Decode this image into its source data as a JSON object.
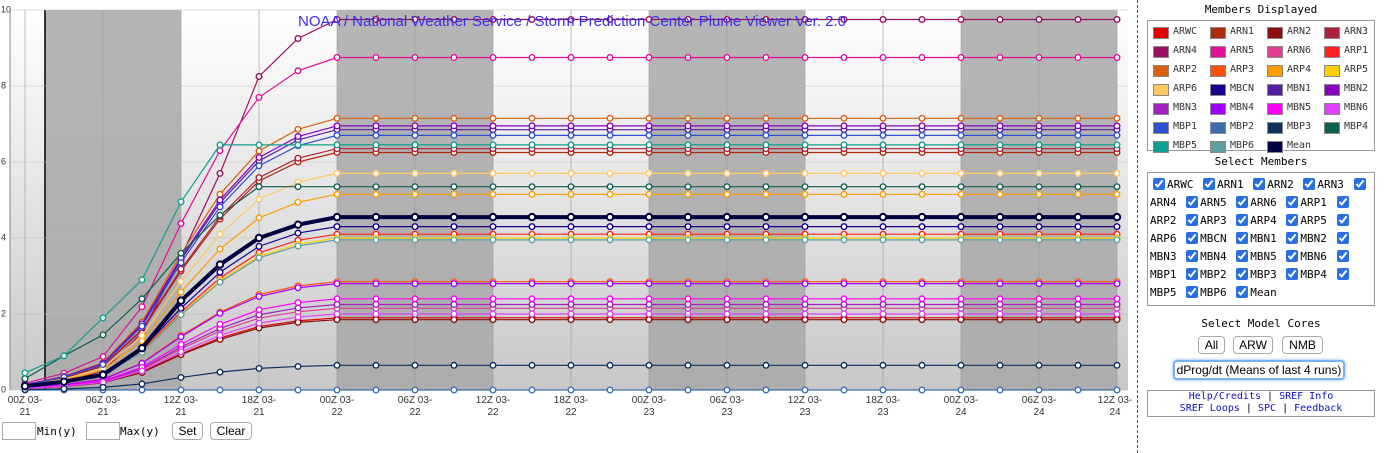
{
  "chart_data": {
    "type": "line",
    "title": "NOAA / National Weather Service / Storm Prediction Center Plume Viewer Ver. 2.0",
    "categories": [
      "00Z 03-21",
      null,
      "06Z 03-21",
      null,
      "12Z 03-21",
      null,
      "18Z 03-21",
      null,
      "00Z 03-22",
      null,
      "06Z 03-22",
      null,
      "12Z 03-22",
      null,
      "18Z 03-22",
      null,
      "00Z 03-23",
      null,
      "06Z 03-23",
      null,
      "12Z 03-23",
      null,
      "18Z 03-23",
      null,
      "00Z 03-24",
      null,
      "06Z 03-24",
      null,
      "12Z 03-24"
    ],
    "ylim": [
      0,
      10
    ],
    "yticks": [
      0,
      2,
      4,
      6,
      8,
      10
    ],
    "grid": true,
    "series": [
      {
        "name": "ARWC",
        "color": "#e00000",
        "values": [
          0.04,
          0.1,
          0.19,
          0.48,
          0.95,
          1.37,
          1.67,
          1.82,
          1.9,
          1.9,
          1.9,
          1.9,
          1.9,
          1.9,
          1.9,
          1.9,
          1.9,
          1.9,
          1.9,
          1.9,
          1.9,
          1.9,
          1.9,
          1.9,
          1.9,
          1.9,
          1.9,
          1.9,
          1.9
        ]
      },
      {
        "name": "ARN1",
        "color": "#b02a10",
        "values": [
          0.13,
          0.31,
          0.63,
          1.56,
          3.13,
          4.5,
          5.5,
          6.0,
          6.25,
          6.25,
          6.25,
          6.25,
          6.25,
          6.25,
          6.25,
          6.25,
          6.25,
          6.25,
          6.25,
          6.25,
          6.25,
          6.25,
          6.25,
          6.25,
          6.25,
          6.25,
          6.25,
          6.25,
          6.25
        ]
      },
      {
        "name": "ARN2",
        "color": "#8b1010",
        "values": [
          0.04,
          0.09,
          0.19,
          0.46,
          0.93,
          1.33,
          1.63,
          1.78,
          1.85,
          1.85,
          1.85,
          1.85,
          1.85,
          1.85,
          1.85,
          1.85,
          1.85,
          1.85,
          1.85,
          1.85,
          1.85,
          1.85,
          1.85,
          1.85,
          1.85,
          1.85,
          1.85,
          1.85,
          1.85
        ]
      },
      {
        "name": "ARN3",
        "color": "#b0203a",
        "values": [
          0.13,
          0.32,
          0.64,
          1.59,
          3.18,
          4.57,
          5.59,
          6.1,
          6.35,
          6.35,
          6.35,
          6.35,
          6.35,
          6.35,
          6.35,
          6.35,
          6.35,
          6.35,
          6.35,
          6.35,
          6.35,
          6.35,
          6.35,
          6.35,
          6.35,
          6.35,
          6.35,
          6.35,
          6.35
        ]
      },
      {
        "name": "ARN4",
        "color": "#9a1060",
        "values": [
          0.1,
          0.2,
          0.5,
          1.5,
          3.5,
          5.7,
          8.25,
          9.25,
          9.75,
          9.75,
          9.75,
          9.75,
          9.75,
          9.75,
          9.75,
          9.75,
          9.75,
          9.75,
          9.75,
          9.75,
          9.75,
          9.75,
          9.75,
          9.75,
          9.75,
          9.75,
          9.75,
          9.75,
          9.75
        ]
      },
      {
        "name": "ARN5",
        "color": "#e0109a",
        "values": [
          0.18,
          0.44,
          0.88,
          2.19,
          4.38,
          6.3,
          7.7,
          8.4,
          8.75,
          8.75,
          8.75,
          8.75,
          8.75,
          8.75,
          8.75,
          8.75,
          8.75,
          8.75,
          8.75,
          8.75,
          8.75,
          8.75,
          8.75,
          8.75,
          8.75,
          8.75,
          8.75,
          8.75,
          8.75
        ]
      },
      {
        "name": "ARN6",
        "color": "#e04090",
        "values": [
          0.04,
          0.11,
          0.22,
          0.54,
          1.08,
          1.55,
          1.89,
          2.06,
          2.15,
          2.15,
          2.15,
          2.15,
          2.15,
          2.15,
          2.15,
          2.15,
          2.15,
          2.15,
          2.15,
          2.15,
          2.15,
          2.15,
          2.15,
          2.15,
          2.15,
          2.15,
          2.15,
          2.15,
          2.15
        ]
      },
      {
        "name": "ARP1",
        "color": "#ff2020",
        "values": [
          0.08,
          0.21,
          0.41,
          1.03,
          2.05,
          2.95,
          3.61,
          3.94,
          4.1,
          4.1,
          4.1,
          4.1,
          4.1,
          4.1,
          4.1,
          4.1,
          4.1,
          4.1,
          4.1,
          4.1,
          4.1,
          4.1,
          4.1,
          4.1,
          4.1,
          4.1,
          4.1,
          4.1,
          4.1
        ]
      },
      {
        "name": "ARP2",
        "color": "#d86010",
        "values": [
          0.14,
          0.36,
          0.72,
          1.79,
          3.58,
          5.15,
          6.29,
          6.86,
          7.15,
          7.15,
          7.15,
          7.15,
          7.15,
          7.15,
          7.15,
          7.15,
          7.15,
          7.15,
          7.15,
          7.15,
          7.15,
          7.15,
          7.15,
          7.15,
          7.15,
          7.15,
          7.15,
          7.15,
          7.15
        ]
      },
      {
        "name": "ARP3",
        "color": "#ff5010",
        "values": [
          0.06,
          0.14,
          0.29,
          0.71,
          1.43,
          2.05,
          2.51,
          2.74,
          2.85,
          2.85,
          2.85,
          2.85,
          2.85,
          2.85,
          2.85,
          2.85,
          2.85,
          2.85,
          2.85,
          2.85,
          2.85,
          2.85,
          2.85,
          2.85,
          2.85,
          2.85,
          2.85,
          2.85,
          2.85
        ]
      },
      {
        "name": "ARP4",
        "color": "#ff9a00",
        "values": [
          0.1,
          0.26,
          0.52,
          1.29,
          2.58,
          3.71,
          4.53,
          4.94,
          5.15,
          5.15,
          5.15,
          5.15,
          5.15,
          5.15,
          5.15,
          5.15,
          5.15,
          5.15,
          5.15,
          5.15,
          5.15,
          5.15,
          5.15,
          5.15,
          5.15,
          5.15,
          5.15,
          5.15,
          5.15
        ]
      },
      {
        "name": "ARP5",
        "color": "#ffd000",
        "values": [
          0.08,
          0.2,
          0.4,
          1.0,
          2.0,
          2.88,
          3.52,
          3.84,
          4.0,
          4.0,
          4.0,
          4.0,
          4.0,
          4.0,
          4.0,
          4.0,
          4.0,
          4.0,
          4.0,
          4.0,
          4.0,
          4.0,
          4.0,
          4.0,
          4.0,
          4.0,
          4.0,
          4.0,
          4.0
        ]
      },
      {
        "name": "ARP6",
        "color": "#ffc860",
        "values": [
          0.11,
          0.29,
          0.57,
          1.43,
          2.85,
          4.1,
          5.02,
          5.47,
          5.7,
          5.7,
          5.7,
          5.7,
          5.7,
          5.7,
          5.7,
          5.7,
          5.7,
          5.7,
          5.7,
          5.7,
          5.7,
          5.7,
          5.7,
          5.7,
          5.7,
          5.7,
          5.7,
          5.7,
          5.7
        ]
      },
      {
        "name": "MBCN",
        "color": "#1a0090",
        "values": [
          0.09,
          0.22,
          0.43,
          1.08,
          2.15,
          3.1,
          3.78,
          4.13,
          4.3,
          4.3,
          4.3,
          4.3,
          4.3,
          4.3,
          4.3,
          4.3,
          4.3,
          4.3,
          4.3,
          4.3,
          4.3,
          4.3,
          4.3,
          4.3,
          4.3,
          4.3,
          4.3,
          4.3,
          4.3
        ]
      },
      {
        "name": "MBN1",
        "color": "#5020a0",
        "values": [
          0.14,
          0.34,
          0.69,
          1.71,
          3.43,
          4.93,
          6.03,
          6.58,
          6.85,
          6.85,
          6.85,
          6.85,
          6.85,
          6.85,
          6.85,
          6.85,
          6.85,
          6.85,
          6.85,
          6.85,
          6.85,
          6.85,
          6.85,
          6.85,
          6.85,
          6.85,
          6.85,
          6.85,
          6.85
        ]
      },
      {
        "name": "MBN2",
        "color": "#8a00c0",
        "values": [
          0.14,
          0.35,
          0.7,
          1.74,
          3.48,
          5.0,
          6.12,
          6.67,
          6.95,
          6.95,
          6.95,
          6.95,
          6.95,
          6.95,
          6.95,
          6.95,
          6.95,
          6.95,
          6.95,
          6.95,
          6.95,
          6.95,
          6.95,
          6.95,
          6.95,
          6.95,
          6.95,
          6.95,
          6.95
        ]
      },
      {
        "name": "MBN3",
        "color": "#a020c0",
        "values": [
          0.05,
          0.11,
          0.23,
          0.56,
          1.13,
          1.62,
          1.98,
          2.16,
          2.25,
          2.25,
          2.25,
          2.25,
          2.25,
          2.25,
          2.25,
          2.25,
          2.25,
          2.25,
          2.25,
          2.25,
          2.25,
          2.25,
          2.25,
          2.25,
          2.25,
          2.25,
          2.25,
          2.25,
          2.25
        ]
      },
      {
        "name": "MBN4",
        "color": "#a000ff",
        "values": [
          0.06,
          0.14,
          0.28,
          0.7,
          1.4,
          2.02,
          2.46,
          2.69,
          2.8,
          2.8,
          2.8,
          2.8,
          2.8,
          2.8,
          2.8,
          2.8,
          2.8,
          2.8,
          2.8,
          2.8,
          2.8,
          2.8,
          2.8,
          2.8,
          2.8,
          2.8,
          2.8,
          2.8,
          2.8
        ]
      },
      {
        "name": "MBN5",
        "color": "#ff00ff",
        "values": [
          0.05,
          0.12,
          0.24,
          0.6,
          1.2,
          1.73,
          2.11,
          2.3,
          2.4,
          2.4,
          2.4,
          2.4,
          2.4,
          2.4,
          2.4,
          2.4,
          2.4,
          2.4,
          2.4,
          2.4,
          2.4,
          2.4,
          2.4,
          2.4,
          2.4,
          2.4,
          2.4,
          2.4,
          2.4
        ]
      },
      {
        "name": "MBN6",
        "color": "#e040ff",
        "values": [
          0.04,
          0.1,
          0.2,
          0.5,
          1.0,
          1.44,
          1.76,
          1.92,
          2.0,
          2.0,
          2.0,
          2.0,
          2.0,
          2.0,
          2.0,
          2.0,
          2.0,
          2.0,
          2.0,
          2.0,
          2.0,
          2.0,
          2.0,
          2.0,
          2.0,
          2.0,
          2.0,
          2.0,
          2.0
        ]
      },
      {
        "name": "MBP1",
        "color": "#3050d0",
        "values": [
          0.13,
          0.34,
          0.67,
          1.68,
          3.35,
          4.82,
          5.9,
          6.43,
          6.7,
          6.7,
          6.7,
          6.7,
          6.7,
          6.7,
          6.7,
          6.7,
          6.7,
          6.7,
          6.7,
          6.7,
          6.7,
          6.7,
          6.7,
          6.7,
          6.7,
          6.7,
          6.7,
          6.7,
          6.7
        ]
      },
      {
        "name": "MBP2",
        "color": "#3a70b0",
        "values": [
          0,
          0,
          0,
          0,
          0,
          0,
          0,
          0,
          0,
          0,
          0,
          0,
          0,
          0,
          0,
          0,
          0,
          0,
          0,
          0,
          0,
          0,
          0,
          0,
          0,
          0,
          0,
          0,
          0
        ]
      },
      {
        "name": "MBP3",
        "color": "#103060",
        "values": [
          0.01,
          0.03,
          0.07,
          0.16,
          0.33,
          0.47,
          0.57,
          0.62,
          0.65,
          0.65,
          0.65,
          0.65,
          0.65,
          0.65,
          0.65,
          0.65,
          0.65,
          0.65,
          0.65,
          0.65,
          0.65,
          0.65,
          0.65,
          0.65,
          0.65,
          0.65,
          0.65,
          0.65,
          0.65
        ]
      },
      {
        "name": "MBP4",
        "color": "#106050",
        "values": [
          0.3,
          0.9,
          1.45,
          2.4,
          3.6,
          4.6,
          5.35,
          5.35,
          5.35,
          5.35,
          5.35,
          5.35,
          5.35,
          5.35,
          5.35,
          5.35,
          5.35,
          5.35,
          5.35,
          5.35,
          5.35,
          5.35,
          5.35,
          5.35,
          5.35,
          5.35,
          5.35,
          5.35,
          5.35
        ]
      },
      {
        "name": "MBP5",
        "color": "#10a090",
        "values": [
          0.45,
          0.9,
          1.9,
          2.9,
          4.95,
          6.45,
          6.45,
          6.45,
          6.45,
          6.45,
          6.45,
          6.45,
          6.45,
          6.45,
          6.45,
          6.45,
          6.45,
          6.45,
          6.45,
          6.45,
          6.45,
          6.45,
          6.45,
          6.45,
          6.45,
          6.45,
          6.45,
          6.45,
          6.45
        ]
      },
      {
        "name": "MBP6",
        "color": "#60a0a0",
        "values": [
          0.08,
          0.2,
          0.4,
          0.99,
          1.98,
          2.84,
          3.48,
          3.79,
          3.95,
          3.95,
          3.95,
          3.95,
          3.95,
          3.95,
          3.95,
          3.95,
          3.95,
          3.95,
          3.95,
          3.95,
          3.95,
          3.95,
          3.95,
          3.95,
          3.95,
          3.95,
          3.95,
          3.95,
          3.95
        ]
      },
      {
        "name": "Mean",
        "color": "#000040",
        "values": [
          0.1,
          0.22,
          0.4,
          1.1,
          2.35,
          3.3,
          4.0,
          4.35,
          4.55,
          4.55,
          4.55,
          4.55,
          4.55,
          4.55,
          4.55,
          4.55,
          4.55,
          4.55,
          4.55,
          4.55,
          4.55,
          4.55,
          4.55,
          4.55,
          4.55,
          4.55,
          4.55,
          4.55,
          4.55
        ]
      }
    ]
  },
  "panel": {
    "members_title": "Members Displayed",
    "select_title": "Select Members",
    "cores_title": "Select Model Cores",
    "core_buttons": [
      "All",
      "ARW",
      "NMB"
    ],
    "dprog": "dProg/dt (Means of last 4 runs)",
    "links": [
      "Help/Credits",
      "SREF Info",
      "SREF Loops",
      "SPC",
      "Feedback"
    ],
    "separator": "|"
  },
  "controls": {
    "min_label": "Min(y)",
    "max_label": "Max(y)",
    "buttons": [
      "Set",
      "Clear"
    ]
  }
}
